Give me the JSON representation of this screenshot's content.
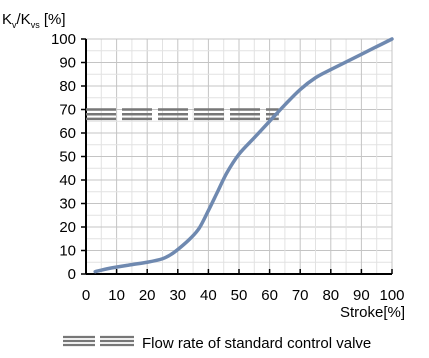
{
  "chart_data": {
    "type": "line",
    "ylabel": {
      "k": "K",
      "sub_v": "v",
      "slash_k": "/K",
      "sub_vs": "vs",
      "unit": " [%]"
    },
    "xlabel": "Stroke[%]",
    "xlim": [
      0,
      100
    ],
    "ylim": [
      0,
      100
    ],
    "x_ticks": [
      "0",
      "10",
      "20",
      "30",
      "40",
      "50",
      "60",
      "70",
      "80",
      "90",
      "100"
    ],
    "y_ticks": [
      "0",
      "10",
      "20",
      "30",
      "40",
      "50",
      "60",
      "70",
      "80",
      "90",
      "100"
    ],
    "grid": true,
    "series": [
      {
        "x": [
          3,
          8,
          15,
          20,
          25,
          28,
          31,
          34,
          37,
          40,
          43,
          46,
          50,
          55,
          60,
          65,
          70,
          75,
          80,
          90,
          100
        ],
        "y": [
          1,
          2.5,
          4,
          5,
          6.5,
          8.5,
          11.5,
          15,
          19.5,
          27,
          35,
          43,
          51,
          58,
          65,
          72,
          78.5,
          83.5,
          87,
          93.5,
          100
        ],
        "color": "#6f89b0"
      }
    ],
    "reference": {
      "name": "Flow rate of standard control valve",
      "y": [
        66,
        68,
        70
      ],
      "x_end": 63,
      "color": "#777777"
    },
    "legend": {
      "label": "Flow rate of standard control valve",
      "placement": "bottom"
    }
  }
}
